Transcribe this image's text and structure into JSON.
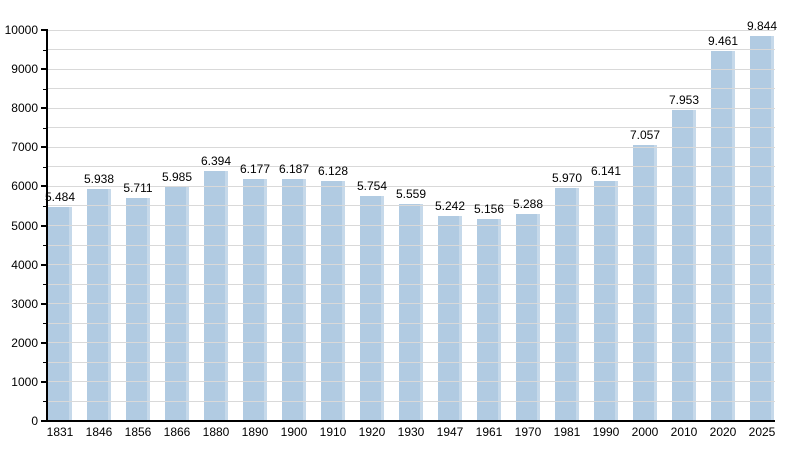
{
  "chart_data": {
    "type": "bar",
    "categories": [
      "1831",
      "1846",
      "1856",
      "1866",
      "1880",
      "1890",
      "1900",
      "1910",
      "1920",
      "1930",
      "1947",
      "1961",
      "1970",
      "1981",
      "1990",
      "2000",
      "2010",
      "2020",
      "2025"
    ],
    "values": [
      5484,
      5938,
      5711,
      5985,
      6394,
      6177,
      6187,
      6128,
      5754,
      5559,
      5242,
      5156,
      5288,
      5970,
      6141,
      7057,
      7953,
      9461,
      9844
    ],
    "value_labels": [
      "5.484",
      "5.938",
      "5.711",
      "5.985",
      "6.394",
      "6.177",
      "6.187",
      "6.128",
      "5.754",
      "5.559",
      "5.242",
      "5.156",
      "5.288",
      "5.970",
      "6.141",
      "7.057",
      "7.953",
      "9.461",
      "9.844"
    ],
    "title": "",
    "xlabel": "",
    "ylabel": "",
    "ylim": [
      0,
      10000
    ],
    "y_major_step": 1000,
    "y_minor_step": 500,
    "y_tick_labels": [
      "0",
      "1000",
      "2000",
      "3000",
      "4000",
      "5000",
      "6000",
      "7000",
      "8000",
      "9000",
      "10000"
    ],
    "grid": true,
    "legend": false,
    "colors": {
      "bar_fill": "#b1cbe2",
      "gridline": "#d9d9d9",
      "axis": "#000000",
      "text": "#000000",
      "background": "#ffffff"
    }
  }
}
